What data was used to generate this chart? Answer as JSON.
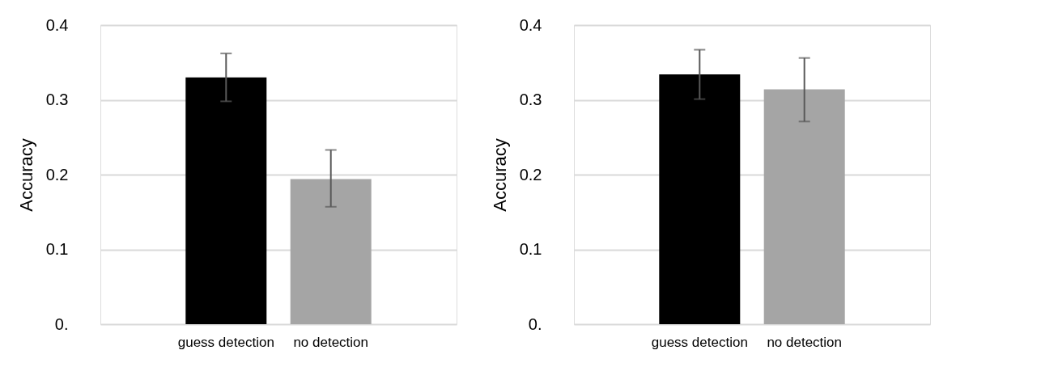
{
  "chart_data": [
    {
      "type": "bar",
      "ylabel": "Accuracy",
      "categories": [
        "guess detection",
        "no detection"
      ],
      "values": [
        0.33,
        0.194
      ],
      "colors": [
        "#000000",
        "#a5a5a5"
      ],
      "errors": [
        [
          0.298,
          0.362
        ],
        [
          0.157,
          0.233
        ]
      ],
      "ylim": [
        0,
        0.4
      ],
      "yticks": [
        {
          "value": 0,
          "label": "0."
        },
        0.1,
        0.2,
        0.3,
        0.4
      ],
      "grid": "y"
    },
    {
      "type": "bar",
      "ylabel": "Accuracy",
      "categories": [
        "guess detection",
        "no detection"
      ],
      "values": [
        0.334,
        0.314
      ],
      "colors": [
        "#000000",
        "#a5a5a5"
      ],
      "errors": [
        [
          0.301,
          0.367
        ],
        [
          0.271,
          0.356
        ]
      ],
      "ylim": [
        0,
        0.4
      ],
      "yticks": [
        {
          "value": 0,
          "label": "0."
        },
        0.1,
        0.2,
        0.3,
        0.4
      ],
      "grid": "y"
    }
  ]
}
